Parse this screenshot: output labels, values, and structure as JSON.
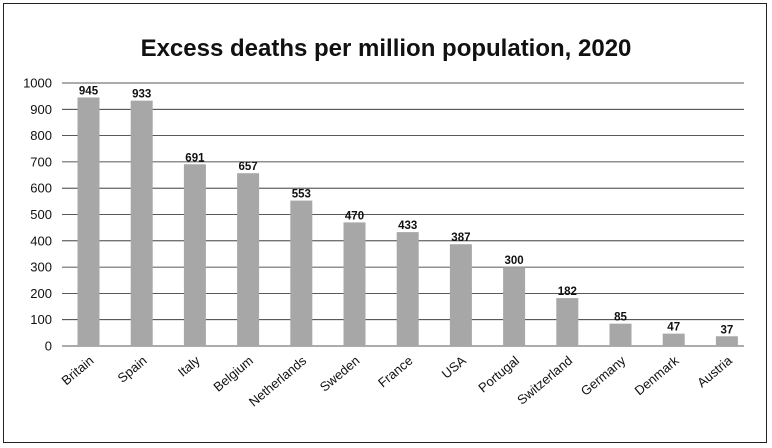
{
  "chart_data": {
    "type": "bar",
    "title": "Excess deaths per million population, 2020",
    "xlabel": "",
    "ylabel": "",
    "categories": [
      "Britain",
      "Spain",
      "Italy",
      "Belgium",
      "Netherlands",
      "Sweden",
      "France",
      "USA",
      "Portugal",
      "Switzerland",
      "Germany",
      "Denmark",
      "Austria"
    ],
    "values": [
      945,
      933,
      691,
      657,
      553,
      470,
      433,
      387,
      300,
      182,
      85,
      47,
      37
    ],
    "ylim": [
      0,
      1000
    ],
    "yticks": [
      0,
      100,
      200,
      300,
      400,
      500,
      600,
      700,
      800,
      900,
      1000
    ],
    "grid": true,
    "bar_color": "#a7a7a7",
    "data_labels": true
  }
}
